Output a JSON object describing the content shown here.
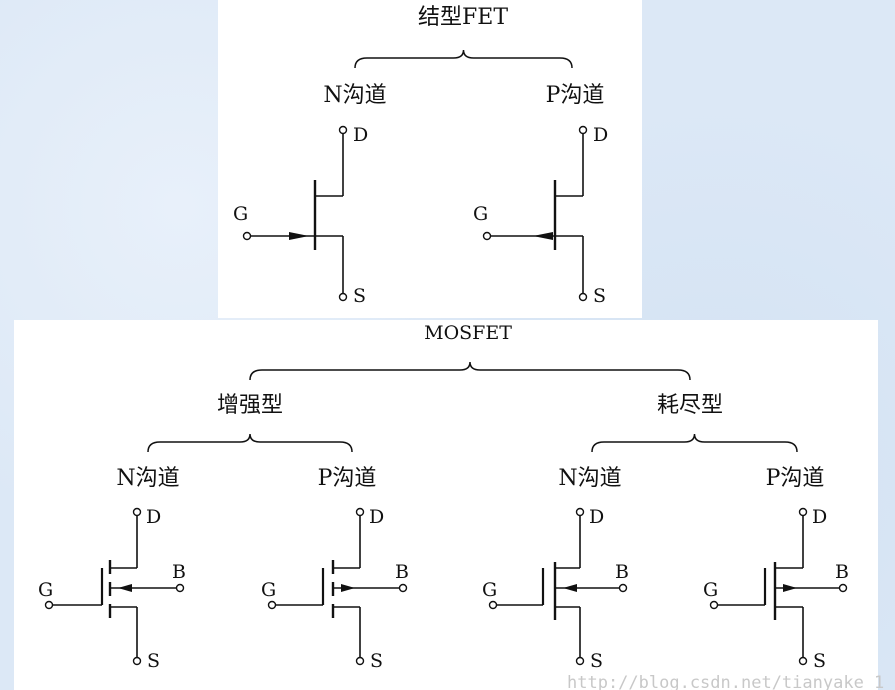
{
  "jfet": {
    "title": "结型FET",
    "n_channel": "N沟道",
    "p_channel": "P沟道"
  },
  "mosfet": {
    "title": "MOSFET",
    "enhancement": "增强型",
    "depletion": "耗尽型",
    "enh_n": "N沟道",
    "enh_p": "P沟道",
    "dep_n": "N沟道",
    "dep_p": "P沟道"
  },
  "pins": {
    "drain": "D",
    "source": "S",
    "gate": "G",
    "body": "B"
  },
  "watermark": "http://blog.csdn.net/tianyake_1"
}
